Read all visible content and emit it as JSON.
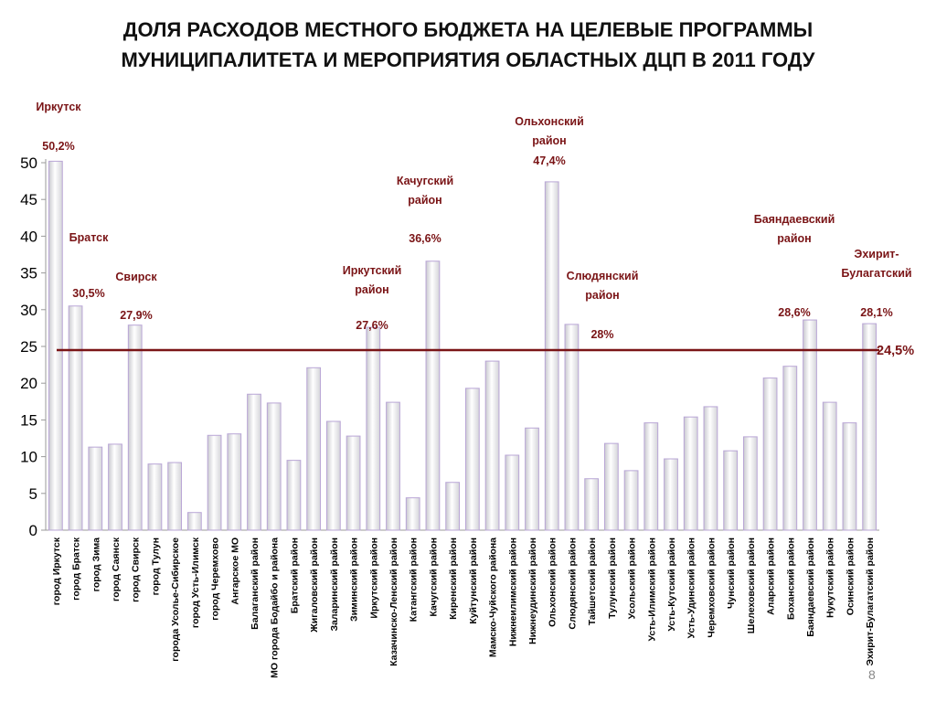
{
  "title_lines": [
    "ДОЛЯ РАСХОДОВ МЕСТНОГО БЮДЖЕТА НА ЦЕЛЕВЫЕ ПРОГРАММЫ",
    "МУНИЦИПАЛИТЕТА И МЕРОПРИЯТИЯ ОБЛАСТНЫХ ДЦП В 2011 ГОДУ"
  ],
  "slide_number": "8",
  "colors": {
    "annotation": "#7a1416",
    "reference_line": "#7a1416",
    "bar_outline": "#b9a6d6"
  },
  "chart_data": {
    "type": "bar",
    "title": "ДОЛЯ РАСХОДОВ МЕСТНОГО БЮДЖЕТА НА ЦЕЛЕВЫЕ ПРОГРАММЫ МУНИЦИПАЛИТЕТА И МЕРОПРИЯТИЯ ОБЛАСТНЫХ ДЦП В 2011 ГОДУ",
    "xlabel": "",
    "ylabel": "",
    "ylim": [
      0,
      50
    ],
    "yticks": [
      0,
      5,
      10,
      15,
      20,
      25,
      30,
      35,
      40,
      45,
      50
    ],
    "grid": false,
    "legend": "none",
    "categories": [
      "город Иркутск",
      "город Братск",
      "город Зима",
      "город Саянск",
      "город Свирск",
      "город Тулун",
      "города Усолье-Сибирское",
      "город Усть-Илимск",
      "город Черемхово",
      "Ангарское МО",
      "Балаганский район",
      "МО города Бодайбо и района",
      "Братский район",
      "Жигаловский район",
      "Заларинский район",
      "Зиминский район",
      "Иркутский район",
      "Казачинско-Ленский район",
      "Катангский район",
      "Качугский район",
      "Киренский район",
      "Куйтунский район",
      "Мамско-Чуйского района",
      "Нижнеилимский район",
      "Нижнеудинский район",
      "Ольхонский район",
      "Слюдянский район",
      "Тайшетский район",
      "Тулунский район",
      "Усольский район",
      "Усть-Илимский район",
      "Усть-Кутский район",
      "Усть-Удинский район",
      "Черемховский район",
      "Чунский район",
      "Шелеховский район",
      "Аларский район",
      "Боханский район",
      "Баяндаевский район",
      "Нукутский район",
      "Осинский район",
      "Эхирит-Булагатский район"
    ],
    "values": [
      50.2,
      30.5,
      11.3,
      11.7,
      27.9,
      9.0,
      9.2,
      2.4,
      12.9,
      13.1,
      18.5,
      17.3,
      9.5,
      22.1,
      14.8,
      12.8,
      27.6,
      17.4,
      4.4,
      36.6,
      6.5,
      19.3,
      23.0,
      10.2,
      13.9,
      47.4,
      28.0,
      7.0,
      11.8,
      8.1,
      14.6,
      9.7,
      15.4,
      16.8,
      10.8,
      12.7,
      20.7,
      22.3,
      28.6,
      17.4,
      14.6,
      28.1
    ],
    "reference_line": {
      "value": 24.5,
      "label": "24,5%"
    },
    "annotations": [
      {
        "index": 0,
        "lines": [
          "Иркутск"
        ],
        "value_text": "50,2%"
      },
      {
        "index": 1,
        "lines": [
          "Братск"
        ],
        "value_text": "30,5%"
      },
      {
        "index": 4,
        "lines": [
          "Свирск"
        ],
        "value_text": "27,9%"
      },
      {
        "index": 16,
        "lines": [
          "Иркутский",
          "район"
        ],
        "value_text": "27,6%"
      },
      {
        "index": 19,
        "lines": [
          "Качугский",
          "район"
        ],
        "value_text": "36,6%"
      },
      {
        "index": 25,
        "lines": [
          "Ольхонский",
          "район"
        ],
        "value_text": "47,4%"
      },
      {
        "index": 26,
        "lines": [
          "Слюдянский",
          "район"
        ],
        "value_text": "28%"
      },
      {
        "index": 38,
        "lines": [
          "Баяндаевский",
          "район"
        ],
        "value_text": "28,6%"
      },
      {
        "index": 41,
        "lines": [
          "Эхирит-",
          "Булагатский"
        ],
        "value_text": "28,1%"
      }
    ]
  }
}
